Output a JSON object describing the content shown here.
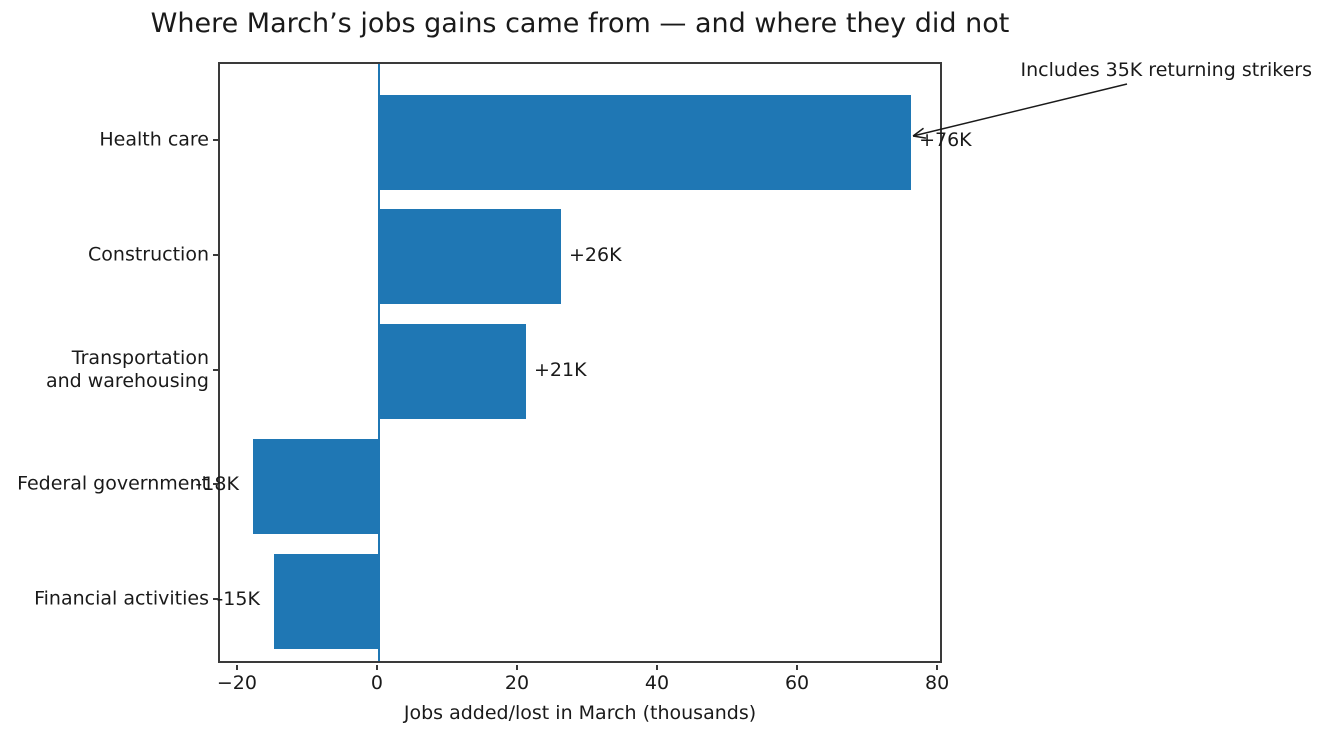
{
  "chart_data": {
    "type": "bar",
    "orientation": "horizontal",
    "title": "Where March’s jobs gains came from — and where they did not",
    "xlabel": "Jobs added/lost in March (thousands)",
    "categories": [
      "Health care",
      "Construction",
      "Transportation\nand warehousing",
      "Federal government",
      "Financial activities"
    ],
    "values": [
      76,
      26,
      21,
      -18,
      -15
    ],
    "bar_labels": [
      "+76K",
      "+26K",
      "+21K",
      "-18K",
      "-15K"
    ],
    "xticks": [
      -20,
      0,
      20,
      40,
      60,
      80
    ],
    "xlim": [
      -22.7,
      80.7
    ],
    "grid": false,
    "legend": null,
    "bar_color": "#1f77b4",
    "zero_line_color": "#1f77b4",
    "annotation": {
      "text": "Includes 35K returning strikers",
      "points_to_category": "Health care",
      "points_to_value": 76
    }
  }
}
